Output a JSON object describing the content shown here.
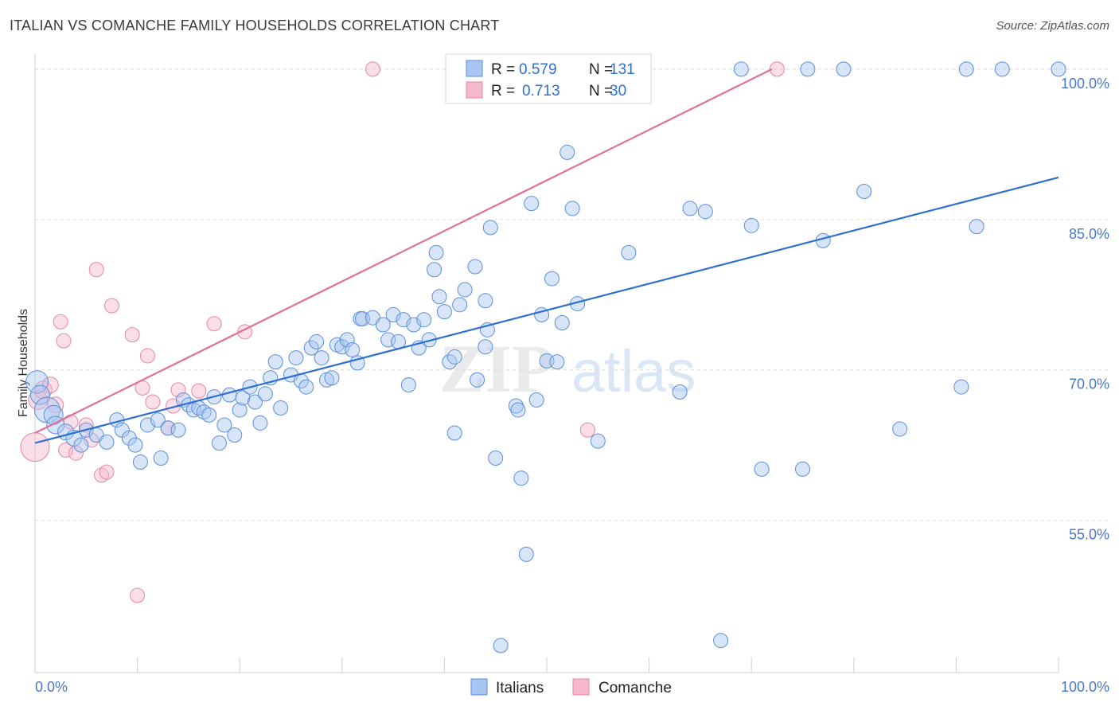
{
  "header": {
    "title": "ITALIAN VS COMANCHE FAMILY HOUSEHOLDS CORRELATION CHART",
    "source": "Source: ZipAtlas.com"
  },
  "watermark": {
    "zip": "ZIP",
    "atlas": "atlas"
  },
  "colors": {
    "italians_fill": "#a9c6f2",
    "italians_stroke": "#5b8fd9",
    "italians_line": "#2f6fd1",
    "comanche_fill": "#f6b9cb",
    "comanche_stroke": "#e486a4",
    "comanche_line": "#e07097",
    "grid": "#dddddd",
    "tick_text": "#4a78c8"
  },
  "legend": {
    "r_label": "R =",
    "n_label": "N =",
    "italians": {
      "r": "0.579",
      "n": "131"
    },
    "comanche": {
      "r": "0.713",
      "n": "30"
    }
  },
  "bottom_legend": {
    "italians": "Italians",
    "comanche": "Comanche"
  },
  "chart_data": {
    "type": "scatter",
    "title": "ITALIAN VS COMANCHE FAMILY HOUSEHOLDS CORRELATION CHART",
    "xlabel": "",
    "ylabel": "Family Households",
    "xlim": [
      0,
      100
    ],
    "ylim": [
      39.8,
      101.5
    ],
    "x_tick_labels": [
      "0.0%",
      "100.0%"
    ],
    "y_ticks": [
      55,
      70,
      85,
      100
    ],
    "y_tick_labels": [
      "55.0%",
      "70.0%",
      "85.0%",
      "100.0%"
    ],
    "grid": true,
    "legend_placement": "top-center",
    "series": [
      {
        "name": "Italians",
        "r": 0.579,
        "n": 131,
        "trend": {
          "x": [
            0,
            100
          ],
          "y": [
            62.7,
            89.2
          ]
        },
        "points": [
          [
            0.2,
            68.8,
            14
          ],
          [
            0.5,
            67.5,
            12
          ],
          [
            1.2,
            66.0,
            16
          ],
          [
            1.8,
            65.5,
            12
          ],
          [
            2.0,
            64.5,
            11
          ],
          [
            3.0,
            63.8,
            10
          ],
          [
            3.8,
            63.2,
            10
          ],
          [
            4.5,
            62.5,
            9
          ],
          [
            5.0,
            64.0,
            9
          ],
          [
            6.0,
            63.5,
            9
          ],
          [
            7.0,
            62.8,
            9
          ],
          [
            8.0,
            65.0,
            9
          ],
          [
            8.5,
            64.0,
            9
          ],
          [
            9.2,
            63.2,
            9
          ],
          [
            9.8,
            62.5,
            9
          ],
          [
            10.3,
            60.8,
            9
          ],
          [
            11.0,
            64.5,
            9
          ],
          [
            12.0,
            65.0,
            9
          ],
          [
            12.3,
            61.2,
            9
          ],
          [
            13.0,
            64.2,
            9
          ],
          [
            14.0,
            64.0,
            9
          ],
          [
            14.5,
            67.0,
            9
          ],
          [
            15.0,
            66.5,
            9
          ],
          [
            15.5,
            66.0,
            9
          ],
          [
            16.0,
            66.2,
            9
          ],
          [
            16.5,
            65.8,
            9
          ],
          [
            17.0,
            65.5,
            9
          ],
          [
            17.5,
            67.3,
            9
          ],
          [
            18.0,
            62.7,
            9
          ],
          [
            18.5,
            64.5,
            9
          ],
          [
            19.0,
            67.5,
            9
          ],
          [
            19.5,
            63.5,
            9
          ],
          [
            20.0,
            66.0,
            9
          ],
          [
            20.3,
            67.2,
            9
          ],
          [
            21.0,
            68.3,
            9
          ],
          [
            21.5,
            66.8,
            9
          ],
          [
            22.0,
            64.7,
            9
          ],
          [
            22.5,
            67.6,
            9
          ],
          [
            23.0,
            69.2,
            9
          ],
          [
            23.5,
            70.8,
            9
          ],
          [
            24.0,
            66.2,
            9
          ],
          [
            25.0,
            69.5,
            9
          ],
          [
            25.5,
            71.2,
            9
          ],
          [
            26.0,
            68.9,
            9
          ],
          [
            26.5,
            68.3,
            9
          ],
          [
            27.0,
            72.2,
            9
          ],
          [
            27.5,
            72.8,
            9
          ],
          [
            28.0,
            71.2,
            9
          ],
          [
            28.5,
            69.0,
            9
          ],
          [
            29.0,
            69.2,
            9
          ],
          [
            29.5,
            72.5,
            9
          ],
          [
            30.0,
            72.3,
            9
          ],
          [
            30.5,
            73.0,
            9
          ],
          [
            31.0,
            72.0,
            9
          ],
          [
            31.5,
            70.7,
            9
          ],
          [
            31.8,
            75.1,
            9
          ],
          [
            32.0,
            75.1,
            9
          ],
          [
            33.0,
            75.2,
            9
          ],
          [
            34.0,
            74.5,
            9
          ],
          [
            34.5,
            73.0,
            9
          ],
          [
            35.0,
            75.5,
            9
          ],
          [
            35.5,
            72.8,
            9
          ],
          [
            36.0,
            75.0,
            9
          ],
          [
            36.5,
            68.5,
            9
          ],
          [
            37.0,
            74.5,
            9
          ],
          [
            37.5,
            72.2,
            9
          ],
          [
            38.0,
            75.0,
            9
          ],
          [
            38.5,
            73.0,
            9
          ],
          [
            39.0,
            80.0,
            9
          ],
          [
            39.2,
            81.7,
            9
          ],
          [
            39.5,
            77.3,
            9
          ],
          [
            40.0,
            75.8,
            9
          ],
          [
            40.5,
            70.8,
            9
          ],
          [
            41.0,
            71.3,
            9
          ],
          [
            41.0,
            63.7,
            9
          ],
          [
            41.5,
            76.5,
            9
          ],
          [
            42.0,
            78.0,
            9
          ],
          [
            43.0,
            80.3,
            9
          ],
          [
            43.2,
            69.0,
            9
          ],
          [
            44.0,
            76.9,
            9
          ],
          [
            44.0,
            72.3,
            9
          ],
          [
            44.2,
            74.0,
            9
          ],
          [
            44.5,
            84.2,
            9
          ],
          [
            45.0,
            61.2,
            9
          ],
          [
            45.5,
            42.5,
            9
          ],
          [
            47.0,
            66.4,
            9
          ],
          [
            47.2,
            66.0,
            9
          ],
          [
            47.5,
            59.2,
            9
          ],
          [
            48.0,
            51.6,
            9
          ],
          [
            48.5,
            86.6,
            9
          ],
          [
            49.0,
            67.0,
            9
          ],
          [
            49.5,
            75.5,
            9
          ],
          [
            50.0,
            70.9,
            9
          ],
          [
            50.5,
            79.1,
            9
          ],
          [
            51.0,
            70.8,
            9
          ],
          [
            51.5,
            74.7,
            9
          ],
          [
            52.0,
            91.7,
            9
          ],
          [
            52.5,
            86.1,
            9
          ],
          [
            53.0,
            76.6,
            9
          ],
          [
            55.0,
            62.9,
            9
          ],
          [
            58.0,
            81.7,
            9
          ],
          [
            58.5,
            100.0,
            9
          ],
          [
            63.0,
            67.8,
            9
          ],
          [
            64.0,
            86.1,
            9
          ],
          [
            65.5,
            85.8,
            9
          ],
          [
            67.0,
            43.0,
            9
          ],
          [
            69.0,
            100.0,
            9
          ],
          [
            70.0,
            84.4,
            9
          ],
          [
            71.0,
            60.1,
            9
          ],
          [
            75.0,
            60.1,
            9
          ],
          [
            75.5,
            100.0,
            9
          ],
          [
            77.0,
            82.9,
            9
          ],
          [
            79.0,
            100.0,
            9
          ],
          [
            81.0,
            87.8,
            9
          ],
          [
            84.5,
            64.1,
            9
          ],
          [
            90.5,
            68.3,
            9
          ],
          [
            91.0,
            100.0,
            9
          ],
          [
            92.0,
            84.3,
            9
          ],
          [
            94.5,
            100.0,
            9
          ],
          [
            100.0,
            100.0,
            9
          ]
        ]
      },
      {
        "name": "Comanche",
        "r": 0.713,
        "n": 30,
        "trend": {
          "x": [
            0,
            72
          ],
          "y": [
            63.7,
            100.0
          ]
        },
        "points": [
          [
            0.0,
            62.3,
            18
          ],
          [
            0.3,
            67.0,
            12
          ],
          [
            0.8,
            68.0,
            11
          ],
          [
            1.5,
            68.5,
            10
          ],
          [
            2.0,
            66.5,
            10
          ],
          [
            2.5,
            74.8,
            9
          ],
          [
            3.0,
            62.0,
            9
          ],
          [
            3.5,
            64.8,
            9
          ],
          [
            4.0,
            61.7,
            9
          ],
          [
            5.0,
            64.5,
            9
          ],
          [
            5.5,
            63.0,
            9
          ],
          [
            6.0,
            80.0,
            9
          ],
          [
            6.5,
            59.5,
            9
          ],
          [
            7.0,
            59.8,
            9
          ],
          [
            7.5,
            76.4,
            9
          ],
          [
            9.5,
            73.5,
            9
          ],
          [
            10.0,
            47.5,
            9
          ],
          [
            10.5,
            68.2,
            9
          ],
          [
            11.0,
            71.4,
            9
          ],
          [
            11.5,
            66.8,
            9
          ],
          [
            13.0,
            64.2,
            9
          ],
          [
            13.5,
            66.4,
            9
          ],
          [
            14.0,
            68.0,
            9
          ],
          [
            16.0,
            67.9,
            9
          ],
          [
            17.5,
            74.6,
            9
          ],
          [
            20.5,
            73.8,
            9
          ],
          [
            33.0,
            100.0,
            9
          ],
          [
            72.5,
            100.0,
            9
          ],
          [
            54.0,
            64.0,
            9
          ],
          [
            2.8,
            72.9,
            9
          ]
        ]
      }
    ]
  }
}
